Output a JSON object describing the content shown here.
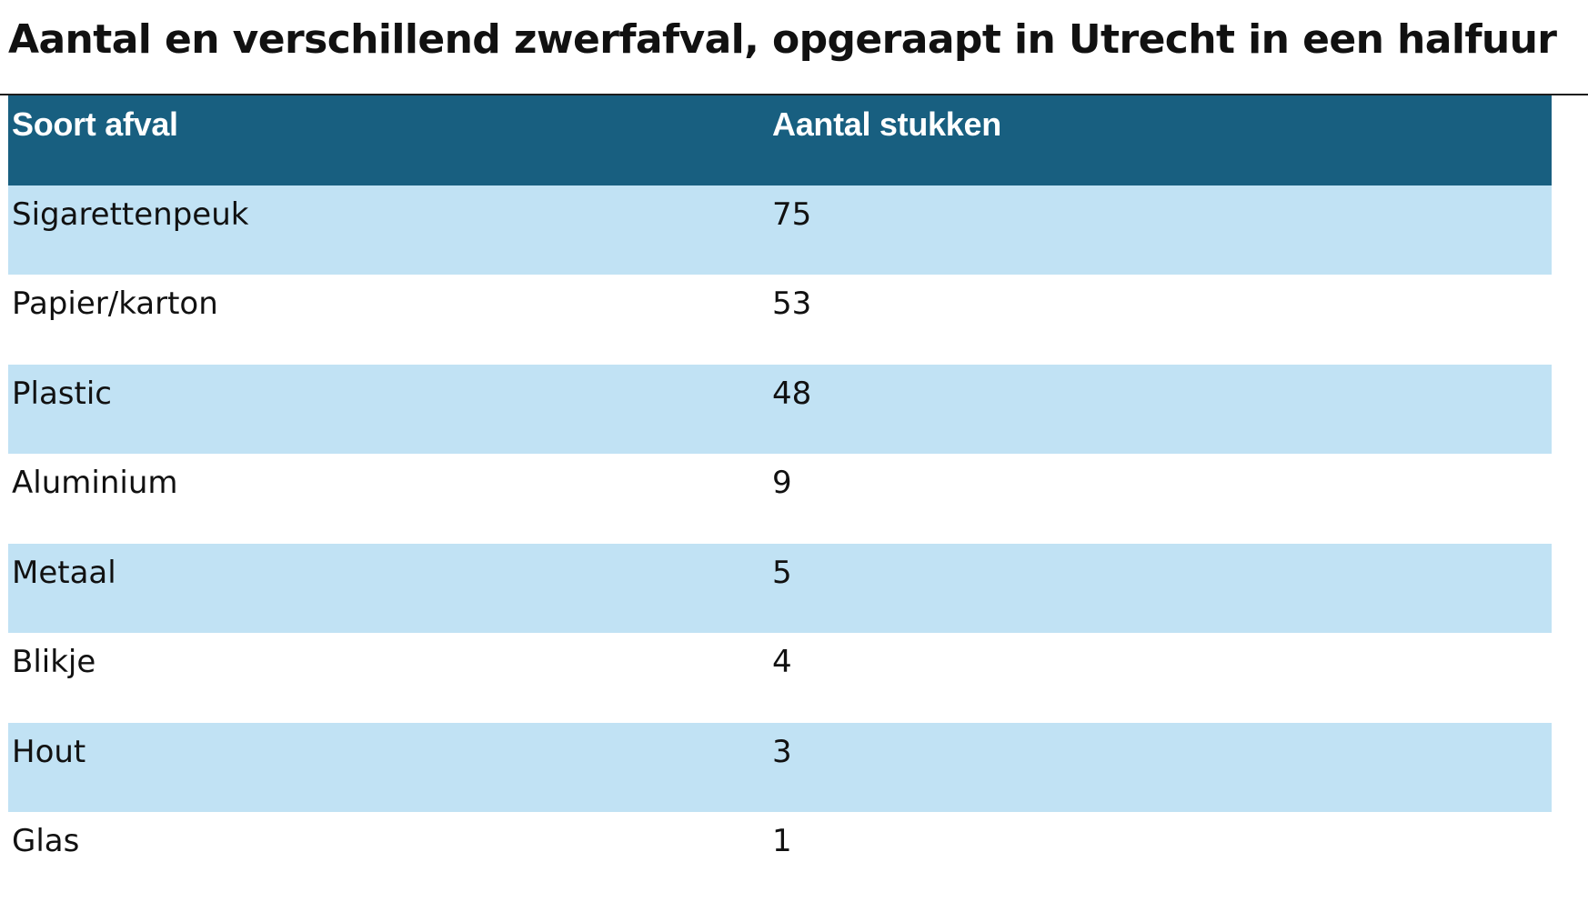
{
  "title": "Aantal en verschillend zwerfafval, opgeraapt in Utrecht in een halfuur",
  "colors": {
    "header_background": "#185f80",
    "header_text": "#ffffff",
    "band_row": "#c1e2f4",
    "plain_row": "#ffffff"
  },
  "table": {
    "headers": [
      "Soort afval",
      "Aantal stukken"
    ],
    "rows": [
      [
        "Sigarettenpeuk",
        "75"
      ],
      [
        "Papier/karton",
        "53"
      ],
      [
        "Plastic",
        "48"
      ],
      [
        "Aluminium",
        "9"
      ],
      [
        "Metaal",
        "5"
      ],
      [
        "Blikje",
        "4"
      ],
      [
        "Hout",
        "3"
      ],
      [
        "Glas",
        "1"
      ]
    ]
  }
}
